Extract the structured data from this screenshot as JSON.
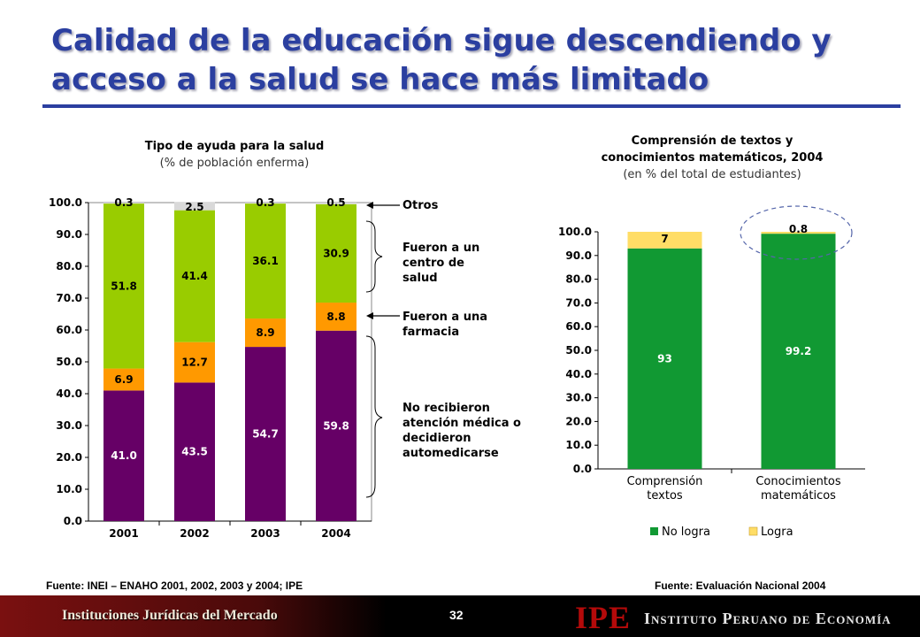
{
  "slide": {
    "title": "Calidad de la educación sigue descendiendo y acceso a la salud se hace más limitado"
  },
  "left_chart": {
    "title": "Tipo de ayuda para la salud",
    "subtitle": "(% de población enferma)",
    "source": "Fuente: INEI – ENAHO 2001, 2002, 2003 y 2004; IPE"
  },
  "right_chart": {
    "title_line1": "Comprensión de textos y",
    "title_line2": "conocimientos matemáticos, 2004",
    "subtitle": "(en % del total de estudiantes)",
    "source": "Fuente: Evaluación Nacional 2004"
  },
  "annotations": {
    "otros": "Otros",
    "centro_l1": "Fueron  a un",
    "centro_l2": "centro de",
    "centro_l3": "salud",
    "farmacia_l1": "Fueron a una",
    "farmacia_l2": "farmacia",
    "no_l1": "No recibieron",
    "no_l2": "atención médica o",
    "no_l3": "decidieron",
    "no_l4": "automedicarse"
  },
  "footer": {
    "left": "Instituciones Jurídicas del Mercado",
    "page": "32",
    "logo": "IPE",
    "institution": "Instituto Peruano de Economía"
  },
  "colors": {
    "purple": "#660066",
    "orange": "#ff9900",
    "lime": "#99cc00",
    "grey": "#d9d9d9",
    "green": "#119933",
    "yellow": "#ffdd66",
    "title_blue": "#2b3fa0"
  },
  "chart_data": [
    {
      "type": "bar",
      "stacked": true,
      "categories": [
        "2001",
        "2002",
        "2003",
        "2004"
      ],
      "ylim": [
        0,
        100
      ],
      "y_ticks": [
        "0.0",
        "10.0",
        "20.0",
        "30.0",
        "40.0",
        "50.0",
        "60.0",
        "70.0",
        "80.0",
        "90.0",
        "100.0"
      ],
      "series": [
        {
          "key": "none",
          "values": [
            41.0,
            43.5,
            54.7,
            59.8
          ],
          "labels": [
            "41.0",
            "43.5",
            "54.7",
            "59.8"
          ],
          "color": "#660066",
          "label_color": "#ffffff"
        },
        {
          "key": "pharmacy",
          "values": [
            6.9,
            12.7,
            8.9,
            8.8
          ],
          "labels": [
            "6.9",
            "12.7",
            "8.9",
            "8.8"
          ],
          "color": "#ff9900",
          "label_color": "#000000"
        },
        {
          "key": "health_center",
          "values": [
            51.8,
            41.4,
            36.1,
            30.9
          ],
          "labels": [
            "51.8",
            "41.4",
            "36.1",
            "30.9"
          ],
          "color": "#99cc00",
          "label_color": "#000000"
        },
        {
          "key": "other",
          "values": [
            0.3,
            2.5,
            0.3,
            0.5
          ],
          "labels": [
            "0.3",
            "2.5",
            "0.3",
            "0.5"
          ],
          "color": "#d9d9d9",
          "label_color": "#000000"
        }
      ]
    },
    {
      "type": "bar",
      "stacked": true,
      "categories": [
        [
          "Comprensión",
          "textos"
        ],
        [
          "Conocimientos",
          "matemáticos"
        ]
      ],
      "ylim": [
        0,
        100
      ],
      "y_ticks": [
        "0.0",
        "10.0",
        "20.0",
        "30.0",
        "40.0",
        "50.0",
        "60.0",
        "70.0",
        "80.0",
        "90.0",
        "100.0"
      ],
      "legend": "bottom",
      "series": [
        {
          "name": "No logra",
          "values": [
            93,
            99.2
          ],
          "labels": [
            "93",
            "99.2"
          ],
          "color": "#119933",
          "label_color": "#ffffff"
        },
        {
          "name": "Logra",
          "values": [
            7,
            0.8
          ],
          "labels": [
            "7",
            "0.8"
          ],
          "color": "#ffdd66",
          "label_color": "#000000"
        }
      ]
    }
  ]
}
